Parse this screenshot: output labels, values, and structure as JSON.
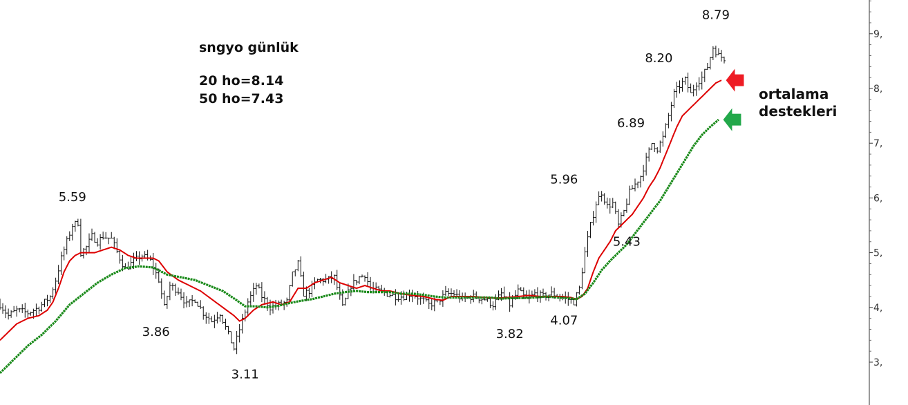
{
  "chart_data": {
    "type": "line",
    "title": "sngyo günlük",
    "subtitle_lines": [
      "20 ho=8.14",
      "50 ho=7.43"
    ],
    "xlabel": "",
    "ylabel": "",
    "ylim": [
      2.3,
      9.7
    ],
    "grid": false,
    "y_ticks": [
      {
        "value": 3,
        "label": "3,"
      },
      {
        "value": 4,
        "label": "4,"
      },
      {
        "value": 5,
        "label": "5,"
      },
      {
        "value": 6,
        "label": "6,"
      },
      {
        "value": 7,
        "label": "7,"
      },
      {
        "value": 8,
        "label": "8,"
      },
      {
        "value": 9,
        "label": "9,"
      }
    ],
    "x_range": [
      0,
      260
    ],
    "price_keyframes": [
      [
        0,
        4.05
      ],
      [
        3,
        3.85
      ],
      [
        6,
        3.95
      ],
      [
        10,
        3.9
      ],
      [
        14,
        4.0
      ],
      [
        18,
        4.2
      ],
      [
        20,
        4.5
      ],
      [
        22,
        4.9
      ],
      [
        24,
        5.2
      ],
      [
        26,
        5.5
      ],
      [
        28,
        5.55
      ],
      [
        29,
        5.0
      ],
      [
        31,
        5.1
      ],
      [
        33,
        5.3
      ],
      [
        35,
        5.2
      ],
      [
        37,
        5.3
      ],
      [
        40,
        5.25
      ],
      [
        43,
        4.9
      ],
      [
        45,
        4.7
      ],
      [
        48,
        4.85
      ],
      [
        51,
        4.95
      ],
      [
        54,
        4.85
      ],
      [
        57,
        4.5
      ],
      [
        59,
        4.0
      ],
      [
        61,
        4.4
      ],
      [
        64,
        4.3
      ],
      [
        67,
        4.05
      ],
      [
        70,
        4.15
      ],
      [
        73,
        3.9
      ],
      [
        76,
        3.75
      ],
      [
        79,
        3.9
      ],
      [
        82,
        3.5
      ],
      [
        84,
        3.25
      ],
      [
        86,
        3.6
      ],
      [
        89,
        4.1
      ],
      [
        92,
        4.4
      ],
      [
        94,
        4.2
      ],
      [
        97,
        4.0
      ],
      [
        100,
        4.05
      ],
      [
        103,
        4.1
      ],
      [
        105,
        4.6
      ],
      [
        107,
        4.8
      ],
      [
        109,
        4.25
      ],
      [
        111,
        4.3
      ],
      [
        114,
        4.5
      ],
      [
        117,
        4.5
      ],
      [
        120,
        4.55
      ],
      [
        123,
        4.0
      ],
      [
        126,
        4.4
      ],
      [
        129,
        4.55
      ],
      [
        131,
        4.6
      ],
      [
        133,
        4.35
      ],
      [
        136,
        4.3
      ],
      [
        139,
        4.25
      ],
      [
        142,
        4.2
      ],
      [
        145,
        4.2
      ],
      [
        148,
        4.25
      ],
      [
        151,
        4.15
      ],
      [
        154,
        4.05
      ],
      [
        157,
        4.1
      ],
      [
        160,
        4.25
      ],
      [
        163,
        4.25
      ],
      [
        166,
        4.15
      ],
      [
        170,
        4.2
      ],
      [
        174,
        4.15
      ],
      [
        177,
        4.05
      ],
      [
        180,
        4.25
      ],
      [
        183,
        4.05
      ],
      [
        186,
        4.3
      ],
      [
        189,
        4.15
      ],
      [
        192,
        4.25
      ],
      [
        195,
        4.2
      ],
      [
        198,
        4.25
      ],
      [
        201,
        4.2
      ],
      [
        204,
        4.15
      ],
      [
        206,
        4.1
      ],
      [
        208,
        4.35
      ],
      [
        210,
        5.0
      ],
      [
        212,
        5.5
      ],
      [
        214,
        5.9
      ],
      [
        216,
        6.1
      ],
      [
        218,
        5.85
      ],
      [
        220,
        5.9
      ],
      [
        222,
        5.5
      ],
      [
        224,
        5.75
      ],
      [
        226,
        6.1
      ],
      [
        228,
        6.25
      ],
      [
        230,
        6.4
      ],
      [
        232,
        6.7
      ],
      [
        234,
        7.0
      ],
      [
        236,
        6.9
      ],
      [
        238,
        7.1
      ],
      [
        240,
        7.5
      ],
      [
        242,
        7.9
      ],
      [
        244,
        8.05
      ],
      [
        246,
        8.15
      ],
      [
        248,
        7.9
      ],
      [
        250,
        8.1
      ],
      [
        252,
        8.2
      ],
      [
        254,
        8.4
      ],
      [
        256,
        8.75
      ],
      [
        258,
        8.6
      ],
      [
        260,
        8.55
      ]
    ],
    "series": [
      {
        "key": "ma20",
        "color": "#dd0000",
        "keyframes": [
          [
            0,
            3.4
          ],
          [
            3,
            3.55
          ],
          [
            6,
            3.7
          ],
          [
            10,
            3.8
          ],
          [
            14,
            3.85
          ],
          [
            17,
            3.95
          ],
          [
            19,
            4.1
          ],
          [
            21,
            4.35
          ],
          [
            23,
            4.65
          ],
          [
            25,
            4.85
          ],
          [
            27,
            4.95
          ],
          [
            29,
            5.0
          ],
          [
            31,
            5.0
          ],
          [
            34,
            5.0
          ],
          [
            37,
            5.05
          ],
          [
            40,
            5.1
          ],
          [
            43,
            5.05
          ],
          [
            46,
            4.95
          ],
          [
            49,
            4.9
          ],
          [
            52,
            4.9
          ],
          [
            55,
            4.9
          ],
          [
            57,
            4.85
          ],
          [
            60,
            4.65
          ],
          [
            64,
            4.5
          ],
          [
            68,
            4.4
          ],
          [
            72,
            4.3
          ],
          [
            76,
            4.15
          ],
          [
            80,
            4.0
          ],
          [
            84,
            3.85
          ],
          [
            86,
            3.75
          ],
          [
            88,
            3.8
          ],
          [
            91,
            3.95
          ],
          [
            94,
            4.05
          ],
          [
            98,
            4.1
          ],
          [
            101,
            4.05
          ],
          [
            104,
            4.1
          ],
          [
            107,
            4.35
          ],
          [
            110,
            4.35
          ],
          [
            113,
            4.45
          ],
          [
            116,
            4.5
          ],
          [
            119,
            4.55
          ],
          [
            122,
            4.45
          ],
          [
            125,
            4.4
          ],
          [
            128,
            4.35
          ],
          [
            131,
            4.4
          ],
          [
            134,
            4.35
          ],
          [
            137,
            4.3
          ],
          [
            140,
            4.3
          ],
          [
            144,
            4.25
          ],
          [
            148,
            4.22
          ],
          [
            152,
            4.2
          ],
          [
            156,
            4.15
          ],
          [
            159,
            4.13
          ],
          [
            162,
            4.2
          ],
          [
            166,
            4.2
          ],
          [
            170,
            4.2
          ],
          [
            174,
            4.18
          ],
          [
            178,
            4.17
          ],
          [
            182,
            4.18
          ],
          [
            186,
            4.2
          ],
          [
            190,
            4.22
          ],
          [
            194,
            4.2
          ],
          [
            198,
            4.2
          ],
          [
            202,
            4.2
          ],
          [
            205,
            4.18
          ],
          [
            207,
            4.15
          ],
          [
            209,
            4.2
          ],
          [
            211,
            4.35
          ],
          [
            213,
            4.65
          ],
          [
            215,
            4.9
          ],
          [
            217,
            5.05
          ],
          [
            219,
            5.2
          ],
          [
            221,
            5.4
          ],
          [
            223,
            5.5
          ],
          [
            225,
            5.6
          ],
          [
            227,
            5.7
          ],
          [
            229,
            5.85
          ],
          [
            231,
            6.0
          ],
          [
            233,
            6.2
          ],
          [
            235,
            6.35
          ],
          [
            237,
            6.55
          ],
          [
            239,
            6.8
          ],
          [
            241,
            7.05
          ],
          [
            243,
            7.3
          ],
          [
            245,
            7.5
          ],
          [
            247,
            7.6
          ],
          [
            249,
            7.7
          ],
          [
            251,
            7.8
          ],
          [
            253,
            7.9
          ],
          [
            255,
            8.0
          ],
          [
            257,
            8.1
          ],
          [
            259,
            8.15
          ]
        ]
      },
      {
        "key": "ma50",
        "color": "#1a8a1a",
        "keyframes": [
          [
            0,
            2.8
          ],
          [
            5,
            3.05
          ],
          [
            10,
            3.3
          ],
          [
            15,
            3.5
          ],
          [
            20,
            3.75
          ],
          [
            25,
            4.05
          ],
          [
            30,
            4.25
          ],
          [
            35,
            4.45
          ],
          [
            40,
            4.6
          ],
          [
            45,
            4.72
          ],
          [
            50,
            4.75
          ],
          [
            55,
            4.73
          ],
          [
            60,
            4.6
          ],
          [
            65,
            4.55
          ],
          [
            70,
            4.5
          ],
          [
            75,
            4.4
          ],
          [
            80,
            4.3
          ],
          [
            85,
            4.13
          ],
          [
            88,
            4.02
          ],
          [
            92,
            4.02
          ],
          [
            96,
            4.0
          ],
          [
            100,
            4.03
          ],
          [
            104,
            4.08
          ],
          [
            108,
            4.12
          ],
          [
            112,
            4.15
          ],
          [
            116,
            4.2
          ],
          [
            120,
            4.25
          ],
          [
            124,
            4.28
          ],
          [
            128,
            4.3
          ],
          [
            132,
            4.28
          ],
          [
            136,
            4.28
          ],
          [
            140,
            4.28
          ],
          [
            144,
            4.25
          ],
          [
            148,
            4.25
          ],
          [
            152,
            4.23
          ],
          [
            156,
            4.2
          ],
          [
            160,
            4.18
          ],
          [
            164,
            4.18
          ],
          [
            168,
            4.18
          ],
          [
            172,
            4.18
          ],
          [
            176,
            4.18
          ],
          [
            180,
            4.16
          ],
          [
            184,
            4.17
          ],
          [
            188,
            4.17
          ],
          [
            192,
            4.18
          ],
          [
            196,
            4.2
          ],
          [
            200,
            4.18
          ],
          [
            204,
            4.17
          ],
          [
            207,
            4.15
          ],
          [
            210,
            4.25
          ],
          [
            213,
            4.45
          ],
          [
            216,
            4.68
          ],
          [
            219,
            4.85
          ],
          [
            222,
            5.0
          ],
          [
            225,
            5.15
          ],
          [
            228,
            5.35
          ],
          [
            231,
            5.55
          ],
          [
            234,
            5.75
          ],
          [
            237,
            5.95
          ],
          [
            240,
            6.2
          ],
          [
            243,
            6.45
          ],
          [
            246,
            6.7
          ],
          [
            249,
            6.95
          ],
          [
            252,
            7.15
          ],
          [
            255,
            7.3
          ],
          [
            258,
            7.43
          ]
        ]
      }
    ],
    "annotations": [
      {
        "label": "5.59",
        "x": 26,
        "y": 5.59
      },
      {
        "label": "3.86",
        "x": 56,
        "y": 3.86
      },
      {
        "label": "3.11",
        "x": 88,
        "y": 3.11
      },
      {
        "label": "3.82",
        "x": 183,
        "y": 3.82
      },
      {
        "label": "4.07",
        "x": 205,
        "y": 4.07
      },
      {
        "label": "5.96",
        "x": 206,
        "y": 5.96
      },
      {
        "label": "5.43",
        "x": 225,
        "y": 5.43
      },
      {
        "label": "6.89",
        "x": 228,
        "y": 6.89
      },
      {
        "label": "8.20",
        "x": 240,
        "y": 8.2
      },
      {
        "label": "8.79",
        "x": 257,
        "y": 8.79
      }
    ],
    "arrows": [
      {
        "color": "#ee1c24",
        "series": "ma20"
      },
      {
        "color": "#22a84a",
        "series": "ma50"
      }
    ],
    "callout_lines": [
      "ortalama",
      "destekleri"
    ]
  }
}
